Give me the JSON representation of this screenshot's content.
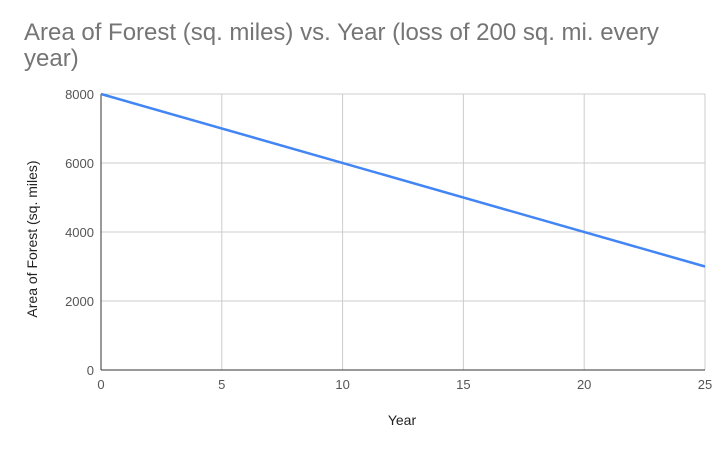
{
  "chart_data": {
    "type": "line",
    "title": "Area of Forest (sq. miles) vs. Year (loss of 200 sq. mi. every year)",
    "xlabel": "Year",
    "ylabel": "Area of Forest (sq. miles)",
    "xlim": [
      0,
      25
    ],
    "ylim": [
      0,
      8000
    ],
    "x_ticks": [
      0,
      5,
      10,
      15,
      20,
      25
    ],
    "y_ticks": [
      0,
      2000,
      4000,
      6000,
      8000
    ],
    "grid": true,
    "legend": "none",
    "series": [
      {
        "color": "#4285f4",
        "x": [
          0,
          25
        ],
        "y": [
          8000,
          3000
        ]
      }
    ]
  },
  "colors": {
    "grid": "#cccccc",
    "axis": "#333333",
    "title": "#757575"
  }
}
